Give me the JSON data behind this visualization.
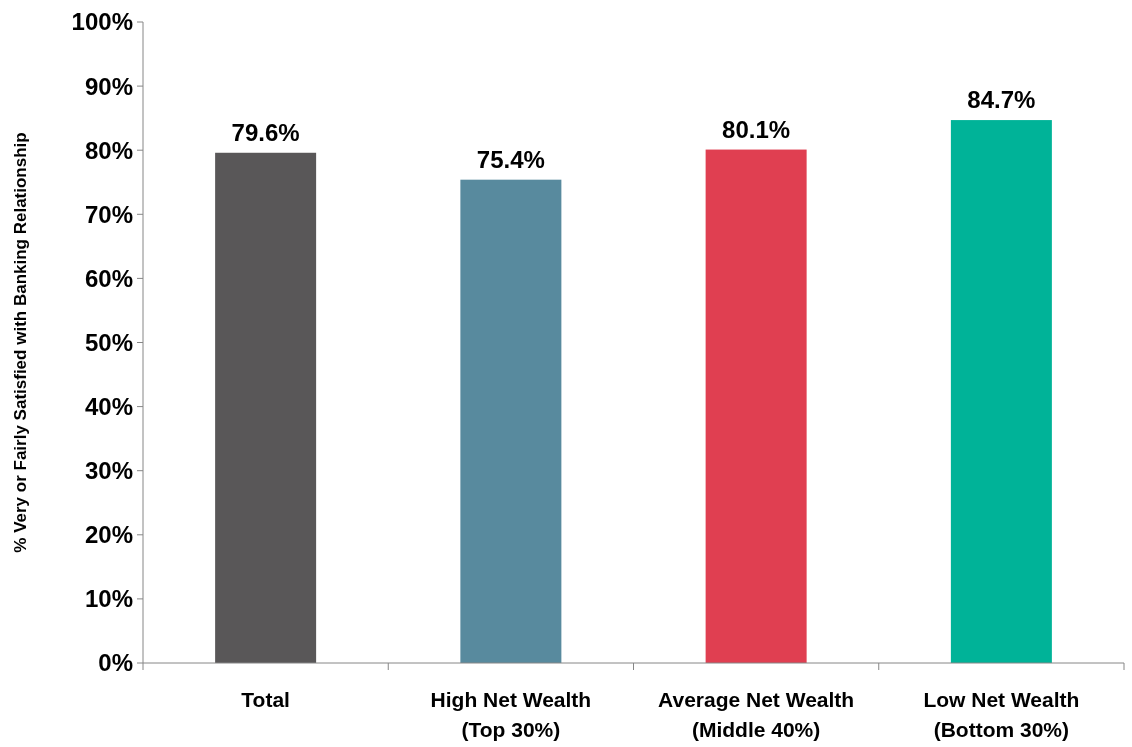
{
  "chart_data": {
    "type": "bar",
    "ylabel": "% Very or Fairly Satisfied with Banking Relationship",
    "categories": [
      "Total",
      "High Net Wealth\n(Top 30%)",
      "Average Net Wealth\n(Middle 40%)",
      "Low Net Wealth\n(Bottom 30%)"
    ],
    "values": [
      79.6,
      75.4,
      80.1,
      84.7
    ],
    "colors": [
      "#595758",
      "#588a9e",
      "#e03f51",
      "#00b398"
    ],
    "value_labels": [
      "79.6%",
      "75.4%",
      "80.1%",
      "84.7%"
    ],
    "ylim": [
      0,
      100
    ],
    "yticks": [
      {
        "value": 0,
        "label": "0%"
      },
      {
        "value": 10,
        "label": "10%"
      },
      {
        "value": 20,
        "label": "20%"
      },
      {
        "value": 30,
        "label": "30%"
      },
      {
        "value": 40,
        "label": "40%"
      },
      {
        "value": 50,
        "label": "50%"
      },
      {
        "value": 60,
        "label": "60%"
      },
      {
        "value": 70,
        "label": "70%"
      },
      {
        "value": 80,
        "label": "80%"
      },
      {
        "value": 90,
        "label": "90%"
      },
      {
        "value": 100,
        "label": "100%"
      }
    ],
    "grid": false
  }
}
